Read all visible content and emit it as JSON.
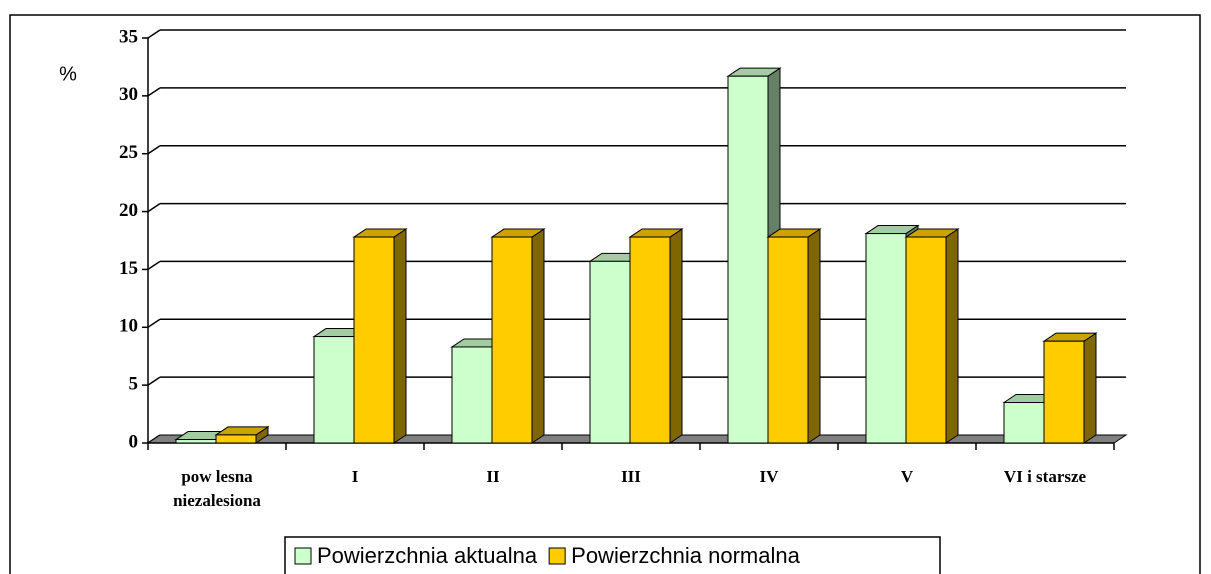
{
  "chart_data": {
    "type": "bar3d",
    "ylabel": "%",
    "categories": [
      "pow lesna\nniezalesiona",
      "I",
      "II",
      "III",
      "IV",
      "V",
      "VI i starsze"
    ],
    "series": [
      {
        "name": "Powierzchnia aktualna",
        "color": "#ccffcc",
        "values": [
          0.3,
          9.2,
          8.3,
          15.7,
          31.7,
          18.1,
          3.5
        ]
      },
      {
        "name": "Powierzchnia normalna",
        "color": "#ffcc00",
        "values": [
          0.7,
          17.8,
          17.8,
          17.8,
          17.8,
          17.8,
          8.8
        ]
      }
    ],
    "ylim": [
      0,
      35
    ],
    "yticks": [
      0,
      5,
      10,
      15,
      20,
      25,
      30,
      35
    ],
    "grid": true,
    "legend": "bottom"
  }
}
